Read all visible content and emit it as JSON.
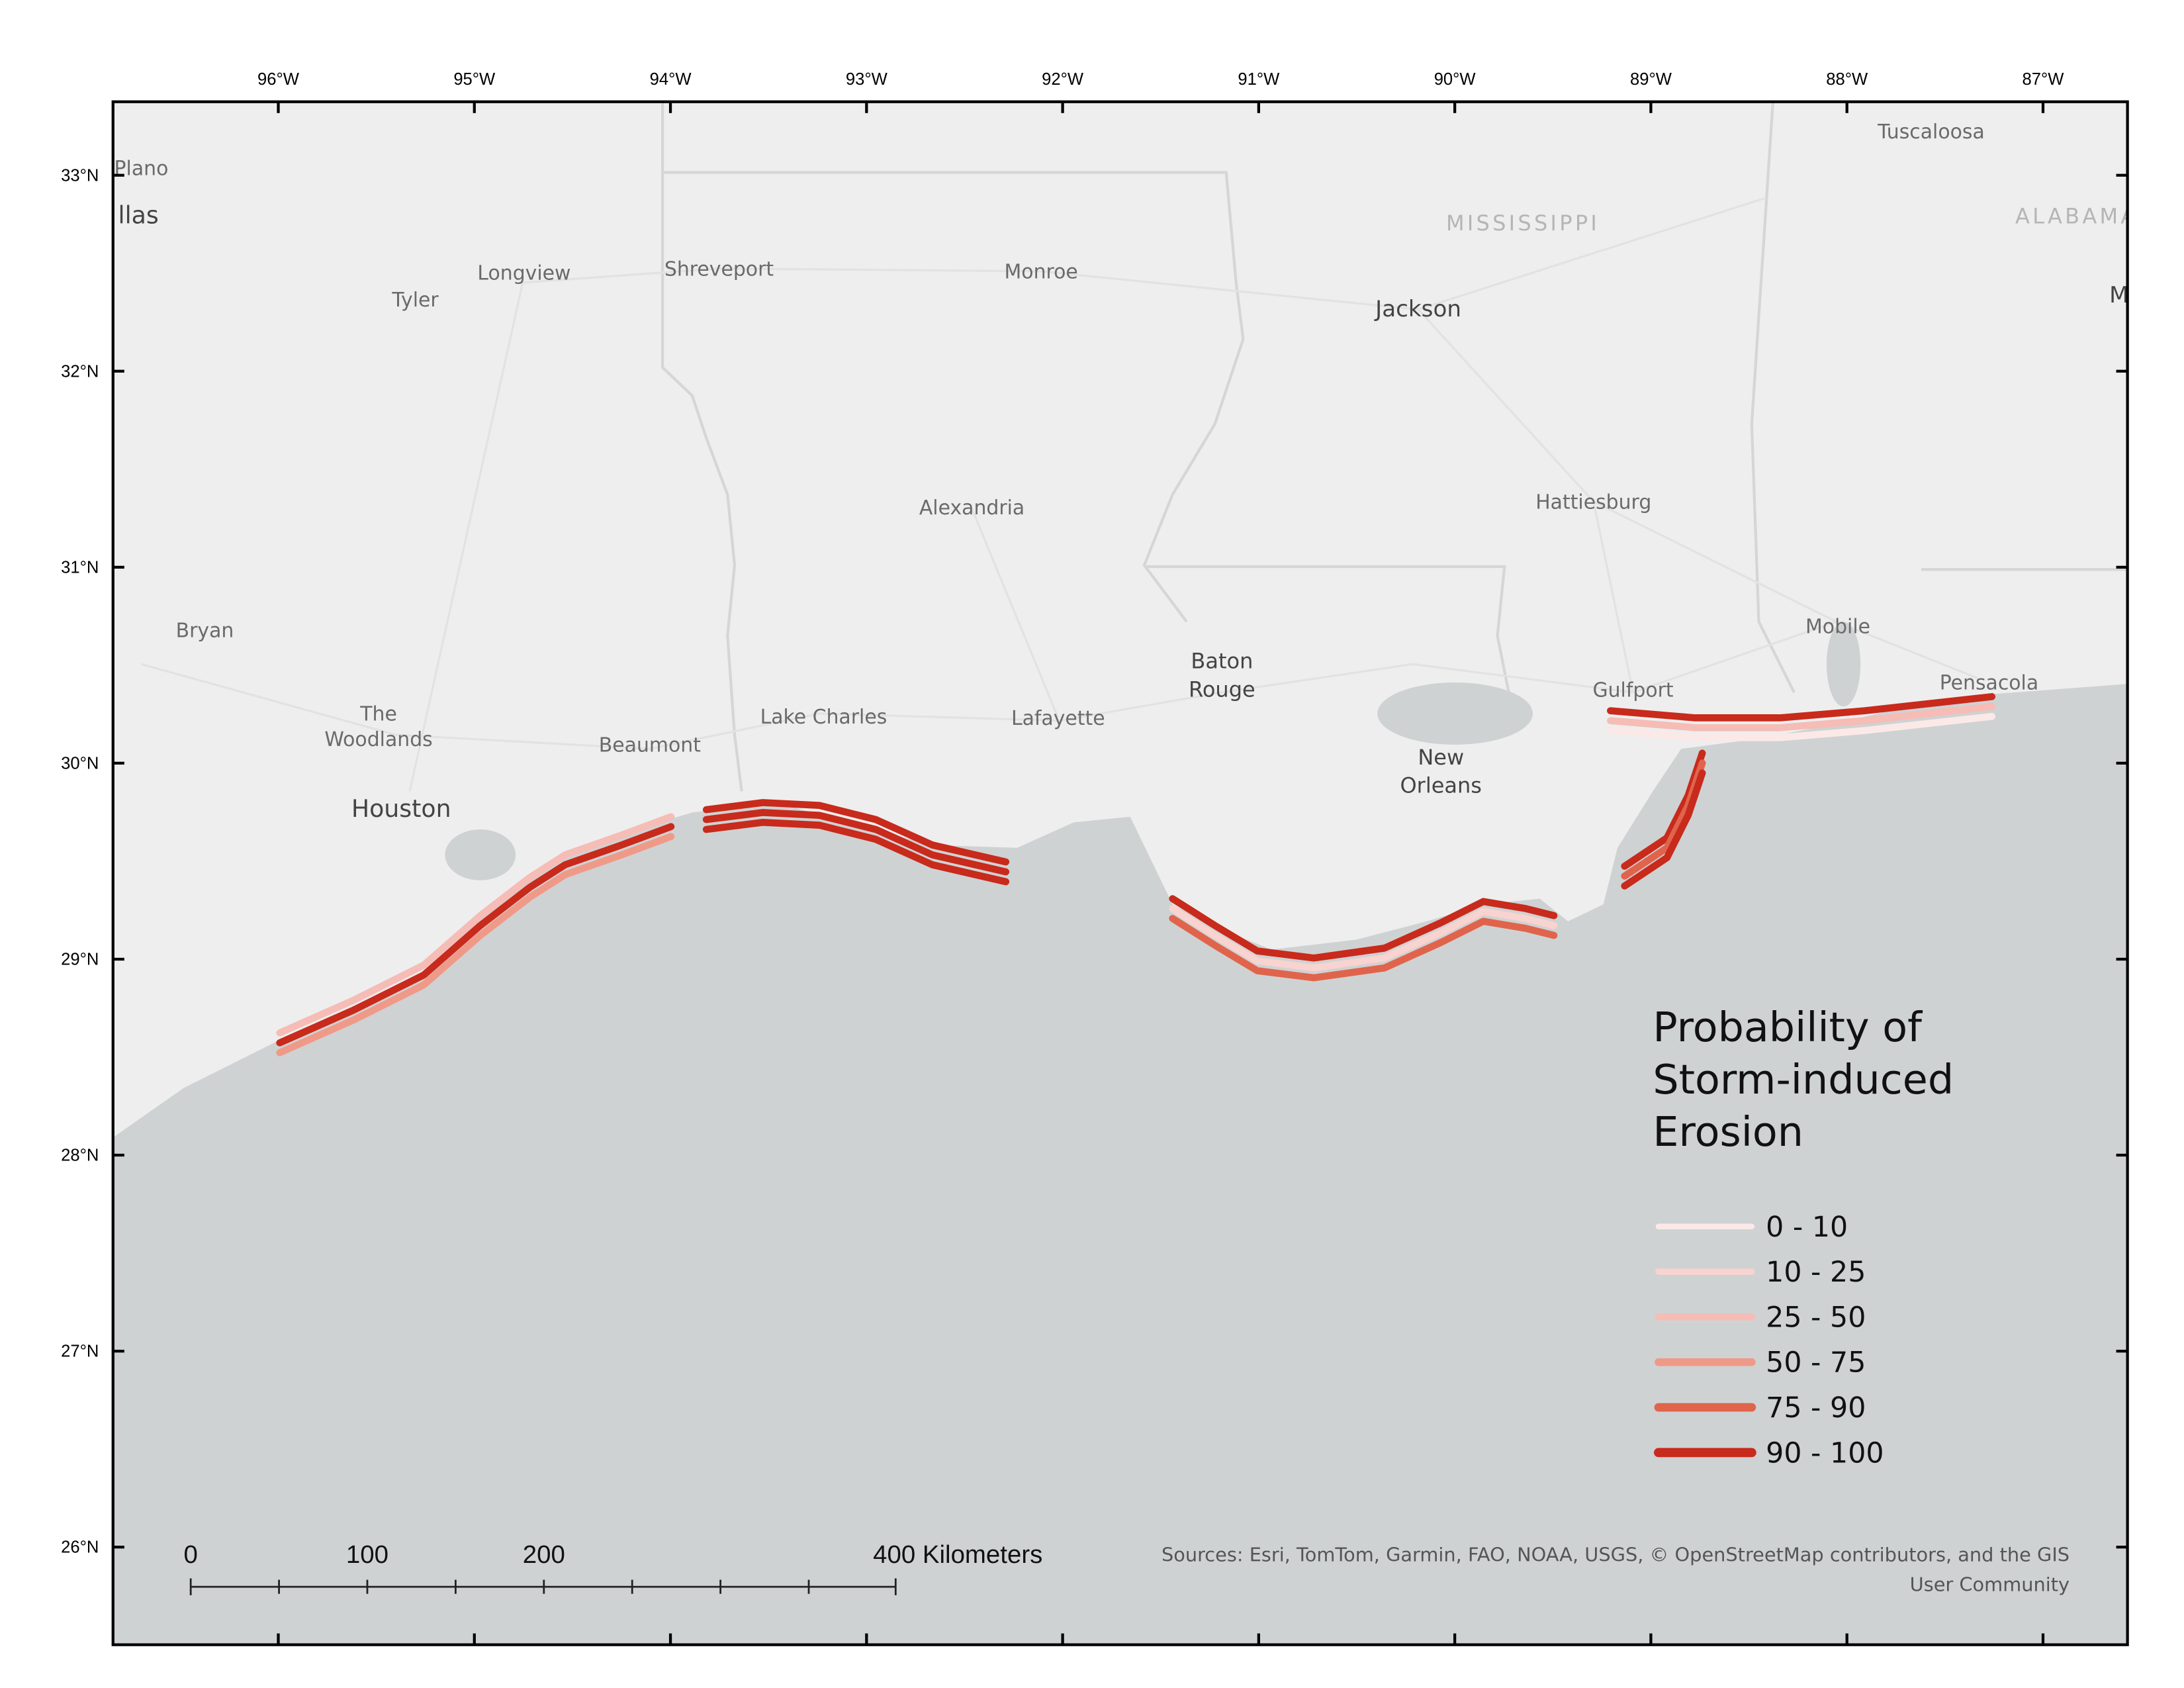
{
  "map": {
    "graticule": {
      "longitudes": [
        "96°W",
        "95°W",
        "94°W",
        "93°W",
        "92°W",
        "91°W",
        "90°W",
        "89°W",
        "88°W",
        "87°W"
      ],
      "latitudes": [
        "33°N",
        "32°N",
        "31°N",
        "30°N",
        "29°N",
        "28°N",
        "27°N",
        "26°N"
      ]
    },
    "places": [
      "Plano",
      "llas",
      "Tyler",
      "Longview",
      "Shreveport",
      "Monroe",
      "MISSISSIPPI",
      "Jackson",
      "Tuscaloosa",
      "ALABAMA",
      "M",
      "Alexandria",
      "Hattiesburg",
      "Bryan",
      "Mobile",
      [
        "Baton",
        "Rouge"
      ],
      "Gulfport",
      "Pensacola",
      [
        "The",
        "Woodlands"
      ],
      "Lake Charles",
      "Lafayette",
      "Beaumont",
      [
        "New",
        "Orleans"
      ],
      "Houston"
    ],
    "legend": {
      "title": [
        "Probability of",
        "Storm-induced",
        "Erosion"
      ],
      "items": [
        {
          "label": "0 - 10",
          "color": "#fbe9e8"
        },
        {
          "label": "10 - 25",
          "color": "#f8d3cf"
        },
        {
          "label": "25 - 50",
          "color": "#f6bcb6"
        },
        {
          "label": "50 - 75",
          "color": "#ef9a88"
        },
        {
          "label": "75 - 90",
          "color": "#e0644c"
        },
        {
          "label": "90 - 100",
          "color": "#c82a1c"
        }
      ]
    },
    "scale_bar": [
      "0",
      "100",
      "200",
      "400 Kilometers"
    ],
    "attribution": [
      "Sources: Esri, TomTom, Garmin, FAO, NOAA, USGS, © OpenStreetMap contributors, and the GIS",
      "User Community"
    ]
  }
}
